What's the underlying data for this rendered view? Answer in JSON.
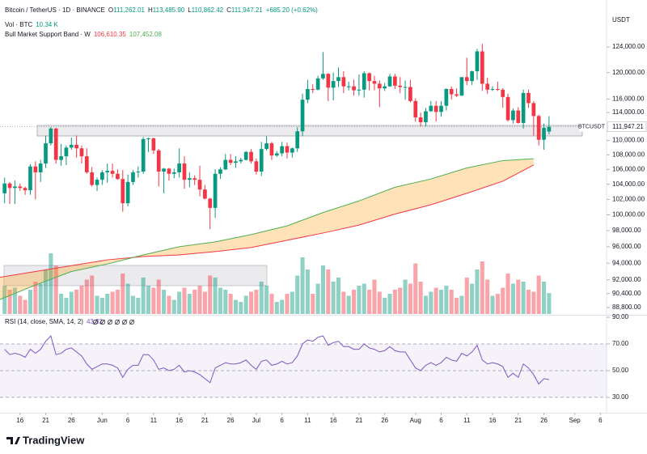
{
  "chart_data": [
    {
      "type": "candlestick",
      "header": {
        "symbol": "Bitcoin / TetherUS · 1D · BINANCE",
        "ohlc": [
          {
            "label": "O",
            "value": "111,262.01"
          },
          {
            "label": "H",
            "value": "113,485.90"
          },
          {
            "label": "L",
            "value": "110,862.42"
          },
          {
            "label": "C",
            "value": "111,947.21"
          }
        ],
        "change": "+685.20 (+0.62%)"
      },
      "currency": "USDT",
      "log_scale": true,
      "grid": false,
      "ylim": [
        88070,
        129660
      ],
      "yticks": [
        {
          "value": 124000,
          "label": "124,000.00"
        },
        {
          "value": 120000,
          "label": "120,000.00"
        },
        {
          "value": 116000,
          "label": "116,000.00"
        },
        {
          "value": 114000,
          "label": "114,000.00"
        },
        {
          "value": 110000,
          "label": "110,000.00"
        },
        {
          "value": 108000,
          "label": "108,000.00"
        },
        {
          "value": 106000,
          "label": "106,000.00"
        },
        {
          "value": 104000,
          "label": "104,000.00"
        },
        {
          "value": 102000,
          "label": "102,000.00"
        },
        {
          "value": 100000,
          "label": "100,000.00"
        },
        {
          "value": 98000,
          "label": "98,000.00"
        },
        {
          "value": 96000,
          "label": "96,000.00"
        },
        {
          "value": 94000,
          "label": "94,000.00"
        },
        {
          "value": 92000,
          "label": "92,000.00"
        },
        {
          "value": 90400,
          "label": "90,400.00"
        },
        {
          "value": 88800,
          "label": "88,800.00"
        }
      ],
      "xlim": [
        -0.9,
        117.2
      ],
      "up_color": "#089981",
      "down_color": "#f23645",
      "ohlc": [
        [
          102800,
          104900,
          101500,
          104100
        ],
        [
          104100,
          104300,
          101400,
          103500
        ],
        [
          103500,
          104500,
          101400,
          103700
        ],
        [
          103700,
          104100,
          103100,
          103500
        ],
        [
          103500,
          103700,
          102600,
          103200
        ],
        [
          103200,
          106700,
          102600,
          106400
        ],
        [
          106400,
          107100,
          102000,
          105600
        ],
        [
          105600,
          107300,
          104300,
          106800
        ],
        [
          106800,
          110700,
          106200,
          109600
        ],
        [
          109600,
          111900,
          109300,
          111700
        ],
        [
          111700,
          111800,
          106800,
          107300
        ],
        [
          107300,
          109500,
          106500,
          107800
        ],
        [
          107800,
          109300,
          106600,
          109000
        ],
        [
          109000,
          110400,
          108700,
          109400
        ],
        [
          109400,
          110700,
          107600,
          108900
        ],
        [
          108900,
          109300,
          106800,
          107800
        ],
        [
          107800,
          108900,
          105400,
          105600
        ],
        [
          105600,
          106300,
          103700,
          103900
        ],
        [
          103900,
          104900,
          103100,
          104600
        ],
        [
          104600,
          105900,
          103900,
          105600
        ],
        [
          105600,
          106800,
          104200,
          105800
        ],
        [
          105800,
          106800,
          104900,
          105400
        ],
        [
          105400,
          106000,
          104600,
          104700
        ],
        [
          104700,
          105900,
          100400,
          101500
        ],
        [
          101500,
          105300,
          101100,
          104300
        ],
        [
          104300,
          105900,
          103900,
          105600
        ],
        [
          105600,
          106400,
          104900,
          105700
        ],
        [
          105700,
          110500,
          105400,
          110200
        ],
        [
          110200,
          110400,
          108400,
          110300
        ],
        [
          110300,
          110400,
          108100,
          108600
        ],
        [
          108600,
          108800,
          103700,
          105700
        ],
        [
          105700,
          106200,
          102800,
          106100
        ],
        [
          106100,
          106200,
          104500,
          105400
        ],
        [
          105400,
          106100,
          104800,
          105600
        ],
        [
          105600,
          108900,
          104900,
          106800
        ],
        [
          106800,
          107800,
          103400,
          104600
        ],
        [
          104600,
          105600,
          103600,
          104800
        ],
        [
          104800,
          105200,
          103900,
          104600
        ],
        [
          104600,
          106500,
          102400,
          103300
        ],
        [
          103300,
          103900,
          102000,
          102100
        ],
        [
          102100,
          102200,
          98200,
          100900
        ],
        [
          100900,
          106000,
          99600,
          105400
        ],
        [
          105400,
          106300,
          104700,
          106000
        ],
        [
          106000,
          108100,
          105900,
          107300
        ],
        [
          107300,
          108100,
          106600,
          106900
        ],
        [
          106900,
          107800,
          106200,
          107100
        ],
        [
          107100,
          107600,
          106800,
          107300
        ],
        [
          107300,
          108500,
          107200,
          108400
        ],
        [
          108400,
          108800,
          106800,
          107100
        ],
        [
          107100,
          107500,
          105300,
          105700
        ],
        [
          105700,
          109800,
          105100,
          108800
        ],
        [
          108800,
          110600,
          108600,
          109600
        ],
        [
          109600,
          109800,
          107300,
          107900
        ],
        [
          107900,
          108500,
          107700,
          108200
        ],
        [
          108200,
          109800,
          107800,
          109200
        ],
        [
          109200,
          109700,
          107500,
          108300
        ],
        [
          108300,
          109000,
          107600,
          108900
        ],
        [
          108900,
          111900,
          108400,
          111300
        ],
        [
          111300,
          116800,
          110600,
          115900
        ],
        [
          115900,
          118900,
          115400,
          117500
        ],
        [
          117500,
          118200,
          116900,
          117400
        ],
        [
          117400,
          119500,
          117300,
          119100
        ],
        [
          119100,
          123200,
          118900,
          119800
        ],
        [
          119800,
          119900,
          115700,
          117700
        ],
        [
          117700,
          120000,
          115800,
          118700
        ],
        [
          118700,
          120800,
          117800,
          119300
        ],
        [
          119300,
          120200,
          116900,
          117900
        ],
        [
          117900,
          118600,
          117300,
          117900
        ],
        [
          117900,
          118900,
          116500,
          117300
        ],
        [
          117300,
          119700,
          116500,
          117400
        ],
        [
          117400,
          120200,
          116200,
          119900
        ],
        [
          119900,
          120000,
          117300,
          118700
        ],
        [
          118700,
          119500,
          117300,
          118300
        ],
        [
          118300,
          118800,
          114800,
          117600
        ],
        [
          117600,
          118400,
          117200,
          117900
        ],
        [
          117900,
          119800,
          117800,
          119400
        ],
        [
          119400,
          119800,
          117500,
          118000
        ],
        [
          118000,
          119300,
          116900,
          117800
        ],
        [
          117800,
          118800,
          115900,
          117800
        ],
        [
          117800,
          118900,
          115500,
          115700
        ],
        [
          115700,
          116100,
          112700,
          113300
        ],
        [
          113300,
          114000,
          112000,
          112600
        ],
        [
          112600,
          114700,
          112000,
          114200
        ],
        [
          114200,
          115700,
          114100,
          115000
        ],
        [
          115000,
          115700,
          112700,
          114100
        ],
        [
          114100,
          115700,
          113400,
          115000
        ],
        [
          115000,
          117600,
          114300,
          117500
        ],
        [
          117500,
          117900,
          115900,
          116700
        ],
        [
          116700,
          117600,
          116300,
          116500
        ],
        [
          116500,
          119300,
          116500,
          119300
        ],
        [
          119300,
          122300,
          118100,
          118700
        ],
        [
          118700,
          120300,
          118100,
          120200
        ],
        [
          120200,
          123700,
          118900,
          123300
        ],
        [
          123300,
          124500,
          117200,
          118300
        ],
        [
          118300,
          119200,
          116800,
          117400
        ],
        [
          117400,
          117900,
          117200,
          117500
        ],
        [
          117500,
          118600,
          117200,
          117400
        ],
        [
          117400,
          117600,
          114700,
          116300
        ],
        [
          116300,
          116800,
          112700,
          112900
        ],
        [
          112900,
          114600,
          112400,
          114300
        ],
        [
          114300,
          114800,
          112400,
          112500
        ],
        [
          112500,
          117400,
          111700,
          116900
        ],
        [
          116900,
          117400,
          114700,
          115400
        ],
        [
          115400,
          115700,
          110700,
          113500
        ],
        [
          113500,
          113700,
          109300,
          110100
        ],
        [
          110100,
          112400,
          108700,
          111800
        ],
        [
          111262.01,
          113485.9,
          110862.42,
          111947.21
        ]
      ],
      "volume": {
        "name": "Vol · BTC",
        "legend_value": "10.34 K",
        "ylim": [
          0,
          40
        ],
        "up_color": "rgba(8,153,129,0.45)",
        "down_color": "rgba(242,54,69,0.45)",
        "values": [
          14,
          12,
          13,
          9,
          7,
          12,
          16,
          15,
          22,
          30,
          24,
          10,
          8,
          11,
          12,
          14,
          17,
          19,
          9,
          8,
          10,
          11,
          12,
          20,
          15,
          9,
          8,
          18,
          14,
          13,
          17,
          12,
          9,
          7,
          11,
          13,
          10,
          12,
          14,
          11,
          19,
          18,
          13,
          12,
          10,
          7,
          6,
          9,
          11,
          12,
          16,
          14,
          10,
          6,
          7,
          10,
          11,
          19,
          28,
          22,
          10,
          15,
          24,
          22,
          16,
          18,
          11,
          9,
          12,
          14,
          15,
          12,
          17,
          11,
          8,
          10,
          12,
          13,
          17,
          15,
          25,
          16,
          9,
          11,
          13,
          12,
          14,
          12,
          8,
          9,
          18,
          15,
          22,
          26,
          17,
          9,
          10,
          13,
          20,
          15,
          17,
          16,
          12,
          11,
          19,
          16,
          10.34
        ]
      },
      "band": {
        "name": "Bull Market Support Band · W",
        "fill": "rgba(255,152,0,0.28)",
        "series": [
          {
            "color": "#f23645",
            "legend_value": "106,610.35",
            "x": [
              -1,
              6,
              13,
              20,
              27,
              34,
              41,
              48,
              55,
              62,
              69,
              76,
              83,
              90,
              97,
              103
            ],
            "values": [
              92300,
              93000,
              93700,
              94400,
              94800,
              95000,
              95400,
              95900,
              96800,
              97700,
              98700,
              100100,
              101300,
              102800,
              104400,
              106610.35
            ]
          },
          {
            "color": "#4caf50",
            "legend_value": "107,452.08",
            "x": [
              -1,
              6,
              13,
              20,
              27,
              34,
              41,
              48,
              55,
              62,
              69,
              76,
              83,
              90,
              97,
              103
            ],
            "values": [
              89700,
              91400,
              93000,
              93900,
              95000,
              96000,
              96600,
              97500,
              98600,
              100300,
              101800,
              103600,
              104700,
              106200,
              107200,
              107452.08
            ]
          }
        ]
      },
      "last": {
        "value": 111947.21,
        "label": "111,947.21",
        "symbol": "BTCUSDT"
      }
    },
    {
      "type": "line",
      "title": "RSI (14, close, SMA, 14, 2)",
      "legend_value": "43.32",
      "color": "#7e57c2",
      "band_fill": "rgba(126,87,194,0.08)",
      "ylim": [
        19.7,
        90
      ],
      "yticks": [
        {
          "value": 90,
          "label": "90.00"
        },
        {
          "value": 70,
          "label": "70.00"
        },
        {
          "value": 50,
          "label": "50.00"
        },
        {
          "value": 30,
          "label": "30.00"
        }
      ],
      "levels": [
        30,
        50,
        70
      ],
      "xlim": [
        -0.9,
        117.2
      ],
      "xticks": [
        {
          "value": 3,
          "label": "16"
        },
        {
          "value": 8,
          "label": "21"
        },
        {
          "value": 13,
          "label": "26"
        },
        {
          "value": 19,
          "label": "Jun"
        },
        {
          "value": 24,
          "label": "6"
        },
        {
          "value": 29,
          "label": "11"
        },
        {
          "value": 34,
          "label": "16"
        },
        {
          "value": 39,
          "label": "21"
        },
        {
          "value": 44,
          "label": "26"
        },
        {
          "value": 49,
          "label": "Jul"
        },
        {
          "value": 54,
          "label": "6"
        },
        {
          "value": 59,
          "label": "11"
        },
        {
          "value": 64,
          "label": "16"
        },
        {
          "value": 69,
          "label": "21"
        },
        {
          "value": 74,
          "label": "26"
        },
        {
          "value": 80,
          "label": "Aug"
        },
        {
          "value": 85,
          "label": "6"
        },
        {
          "value": 90,
          "label": "11"
        },
        {
          "value": 95,
          "label": "16"
        },
        {
          "value": 100,
          "label": "21"
        },
        {
          "value": 105,
          "label": "26"
        },
        {
          "value": 111,
          "label": "Sep"
        },
        {
          "value": 116,
          "label": "6"
        }
      ],
      "values": [
        66,
        62,
        63,
        62,
        60,
        66,
        63,
        66,
        72,
        76,
        62,
        63,
        66,
        67,
        64,
        61,
        55,
        51,
        53,
        55,
        55,
        54,
        52,
        45,
        51,
        54,
        54,
        62,
        62,
        58,
        51,
        52,
        50,
        51,
        54,
        49,
        50,
        49,
        47,
        44,
        41,
        52,
        54,
        56,
        55,
        55,
        56,
        58,
        54,
        51,
        57,
        58,
        54,
        55,
        57,
        55,
        56,
        61,
        70,
        73,
        72,
        75,
        76,
        69,
        71,
        72,
        68,
        68,
        66,
        66,
        70,
        67,
        66,
        64,
        65,
        68,
        65,
        64,
        64,
        58,
        52,
        50,
        54,
        56,
        54,
        56,
        60,
        58,
        57,
        63,
        61,
        64,
        69,
        58,
        55,
        56,
        55,
        53,
        45,
        48,
        45,
        55,
        52,
        47,
        40,
        44,
        43.32
      ]
    }
  ],
  "brand": "TradingView"
}
